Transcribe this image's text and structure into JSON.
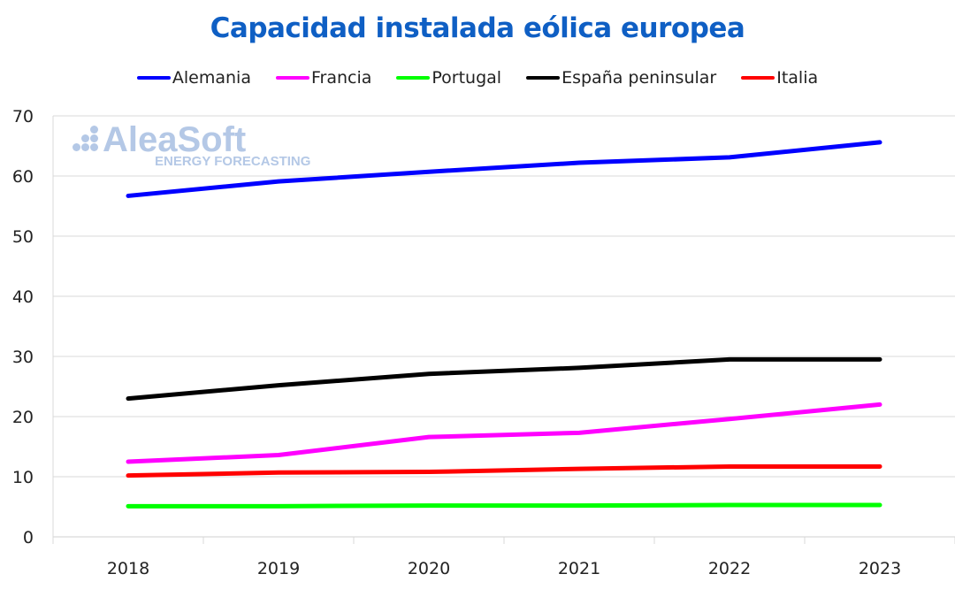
{
  "chart_data": {
    "type": "line",
    "title": "Capacidad instalada eólica europea",
    "xlabel": "",
    "ylabel": "",
    "categories": [
      "2018",
      "2019",
      "2020",
      "2021",
      "2022",
      "2023"
    ],
    "ylim": [
      0,
      70
    ],
    "yticks": [
      0,
      10,
      20,
      30,
      40,
      50,
      60,
      70
    ],
    "grid": true,
    "legend_position": "top-center",
    "series": [
      {
        "name": "Alemania",
        "color": "#0000ff",
        "values": [
          56.7,
          59.1,
          60.7,
          62.2,
          63.1,
          65.6
        ]
      },
      {
        "name": "Francia",
        "color": "#ff00ff",
        "values": [
          12.5,
          13.6,
          16.6,
          17.3,
          19.6,
          22.0
        ]
      },
      {
        "name": "Portugal",
        "color": "#00ff00",
        "values": [
          5.1,
          5.1,
          5.2,
          5.2,
          5.3,
          5.3
        ]
      },
      {
        "name": "España peninsular",
        "color": "#000000",
        "values": [
          23.0,
          25.2,
          27.1,
          28.1,
          29.5,
          29.5
        ]
      },
      {
        "name": "Italia",
        "color": "#ff0000",
        "values": [
          10.2,
          10.7,
          10.8,
          11.3,
          11.7,
          11.7
        ]
      }
    ]
  },
  "watermark": {
    "brand": "AleaSoft",
    "tagline": "ENERGY FORECASTING"
  }
}
